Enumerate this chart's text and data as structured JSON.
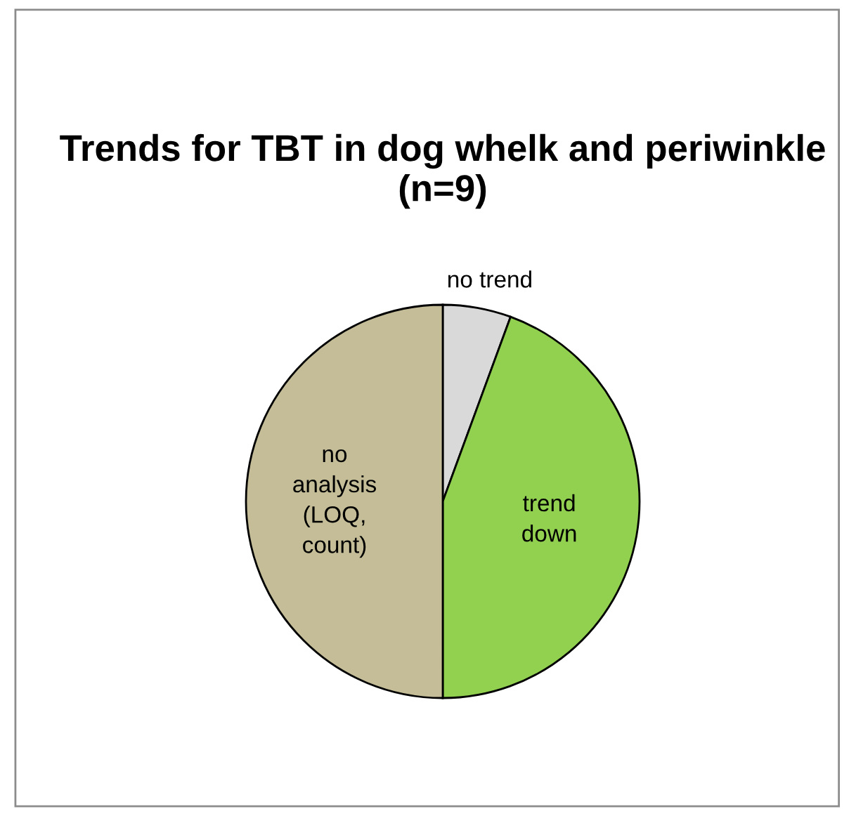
{
  "chart_data": {
    "type": "pie",
    "title": "Trends for TBT in dog whelk and periwinkle (n=9)",
    "categories": [
      "no trend",
      "trend down",
      "no analysis (LOQ, count)"
    ],
    "values": [
      5.6,
      44.4,
      50
    ],
    "colors": [
      "#d9d9d9",
      "#92d050",
      "#c4bd97"
    ],
    "legend": false
  }
}
